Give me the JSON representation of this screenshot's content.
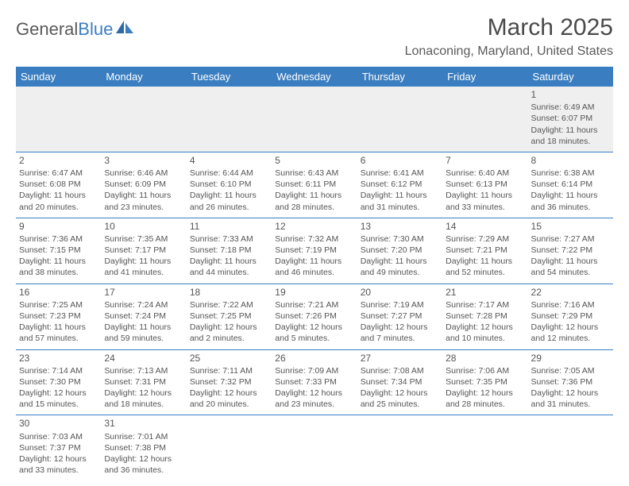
{
  "logo": {
    "text1": "General",
    "text2": "Blue"
  },
  "title": "March 2025",
  "location": "Lonaconing, Maryland, United States",
  "colors": {
    "header_bg": "#3a7ec1",
    "header_text": "#ffffff",
    "border": "#3a7ec1",
    "body_text": "#555555",
    "empty_bg": "#efefef"
  },
  "weekdays": [
    "Sunday",
    "Monday",
    "Tuesday",
    "Wednesday",
    "Thursday",
    "Friday",
    "Saturday"
  ],
  "rows": [
    [
      null,
      null,
      null,
      null,
      null,
      null,
      {
        "n": "1",
        "sr": "6:49 AM",
        "ss": "6:07 PM",
        "d1": "11 hours",
        "d2": "and 18 minutes."
      }
    ],
    [
      {
        "n": "2",
        "sr": "6:47 AM",
        "ss": "6:08 PM",
        "d1": "11 hours",
        "d2": "and 20 minutes."
      },
      {
        "n": "3",
        "sr": "6:46 AM",
        "ss": "6:09 PM",
        "d1": "11 hours",
        "d2": "and 23 minutes."
      },
      {
        "n": "4",
        "sr": "6:44 AM",
        "ss": "6:10 PM",
        "d1": "11 hours",
        "d2": "and 26 minutes."
      },
      {
        "n": "5",
        "sr": "6:43 AM",
        "ss": "6:11 PM",
        "d1": "11 hours",
        "d2": "and 28 minutes."
      },
      {
        "n": "6",
        "sr": "6:41 AM",
        "ss": "6:12 PM",
        "d1": "11 hours",
        "d2": "and 31 minutes."
      },
      {
        "n": "7",
        "sr": "6:40 AM",
        "ss": "6:13 PM",
        "d1": "11 hours",
        "d2": "and 33 minutes."
      },
      {
        "n": "8",
        "sr": "6:38 AM",
        "ss": "6:14 PM",
        "d1": "11 hours",
        "d2": "and 36 minutes."
      }
    ],
    [
      {
        "n": "9",
        "sr": "7:36 AM",
        "ss": "7:15 PM",
        "d1": "11 hours",
        "d2": "and 38 minutes."
      },
      {
        "n": "10",
        "sr": "7:35 AM",
        "ss": "7:17 PM",
        "d1": "11 hours",
        "d2": "and 41 minutes."
      },
      {
        "n": "11",
        "sr": "7:33 AM",
        "ss": "7:18 PM",
        "d1": "11 hours",
        "d2": "and 44 minutes."
      },
      {
        "n": "12",
        "sr": "7:32 AM",
        "ss": "7:19 PM",
        "d1": "11 hours",
        "d2": "and 46 minutes."
      },
      {
        "n": "13",
        "sr": "7:30 AM",
        "ss": "7:20 PM",
        "d1": "11 hours",
        "d2": "and 49 minutes."
      },
      {
        "n": "14",
        "sr": "7:29 AM",
        "ss": "7:21 PM",
        "d1": "11 hours",
        "d2": "and 52 minutes."
      },
      {
        "n": "15",
        "sr": "7:27 AM",
        "ss": "7:22 PM",
        "d1": "11 hours",
        "d2": "and 54 minutes."
      }
    ],
    [
      {
        "n": "16",
        "sr": "7:25 AM",
        "ss": "7:23 PM",
        "d1": "11 hours",
        "d2": "and 57 minutes."
      },
      {
        "n": "17",
        "sr": "7:24 AM",
        "ss": "7:24 PM",
        "d1": "11 hours",
        "d2": "and 59 minutes."
      },
      {
        "n": "18",
        "sr": "7:22 AM",
        "ss": "7:25 PM",
        "d1": "12 hours",
        "d2": "and 2 minutes."
      },
      {
        "n": "19",
        "sr": "7:21 AM",
        "ss": "7:26 PM",
        "d1": "12 hours",
        "d2": "and 5 minutes."
      },
      {
        "n": "20",
        "sr": "7:19 AM",
        "ss": "7:27 PM",
        "d1": "12 hours",
        "d2": "and 7 minutes."
      },
      {
        "n": "21",
        "sr": "7:17 AM",
        "ss": "7:28 PM",
        "d1": "12 hours",
        "d2": "and 10 minutes."
      },
      {
        "n": "22",
        "sr": "7:16 AM",
        "ss": "7:29 PM",
        "d1": "12 hours",
        "d2": "and 12 minutes."
      }
    ],
    [
      {
        "n": "23",
        "sr": "7:14 AM",
        "ss": "7:30 PM",
        "d1": "12 hours",
        "d2": "and 15 minutes."
      },
      {
        "n": "24",
        "sr": "7:13 AM",
        "ss": "7:31 PM",
        "d1": "12 hours",
        "d2": "and 18 minutes."
      },
      {
        "n": "25",
        "sr": "7:11 AM",
        "ss": "7:32 PM",
        "d1": "12 hours",
        "d2": "and 20 minutes."
      },
      {
        "n": "26",
        "sr": "7:09 AM",
        "ss": "7:33 PM",
        "d1": "12 hours",
        "d2": "and 23 minutes."
      },
      {
        "n": "27",
        "sr": "7:08 AM",
        "ss": "7:34 PM",
        "d1": "12 hours",
        "d2": "and 25 minutes."
      },
      {
        "n": "28",
        "sr": "7:06 AM",
        "ss": "7:35 PM",
        "d1": "12 hours",
        "d2": "and 28 minutes."
      },
      {
        "n": "29",
        "sr": "7:05 AM",
        "ss": "7:36 PM",
        "d1": "12 hours",
        "d2": "and 31 minutes."
      }
    ],
    [
      {
        "n": "30",
        "sr": "7:03 AM",
        "ss": "7:37 PM",
        "d1": "12 hours",
        "d2": "and 33 minutes."
      },
      {
        "n": "31",
        "sr": "7:01 AM",
        "ss": "7:38 PM",
        "d1": "12 hours",
        "d2": "and 36 minutes."
      },
      null,
      null,
      null,
      null,
      null
    ]
  ],
  "labels": {
    "sunrise": "Sunrise:",
    "sunset": "Sunset:",
    "daylight": "Daylight:"
  }
}
